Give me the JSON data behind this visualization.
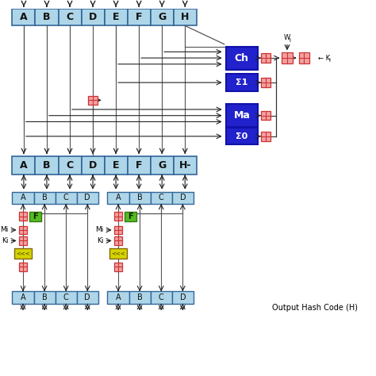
{
  "bg_color": "#ffffff",
  "light_blue": "#aed6e8",
  "blue_box": "#2222cc",
  "pink_xor_fc": "#f4a0a0",
  "pink_xor_ec": "#cc3333",
  "yellow_box": "#d4d400",
  "green_f": "#55bb22",
  "output_text": "Output Hash Code (H)",
  "top_labels": [
    "A",
    "B",
    "C",
    "D",
    "E",
    "F",
    "G",
    "H"
  ],
  "mid_labels": [
    "A",
    "B",
    "C",
    "D",
    "E",
    "F",
    "G",
    "H-"
  ],
  "sub_labels": [
    "A",
    "B",
    "C",
    "D"
  ],
  "figw": 4.74,
  "figh": 4.74,
  "dpi": 100
}
